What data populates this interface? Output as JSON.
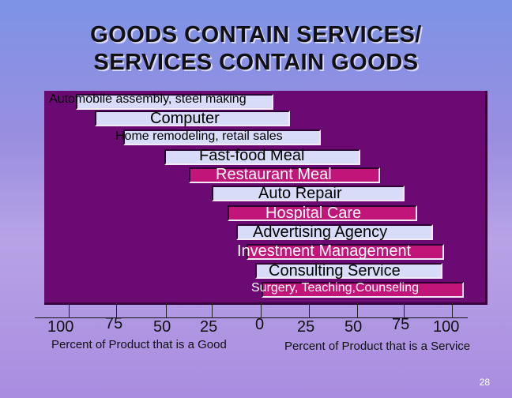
{
  "title": {
    "line1": "GOODS CONTAIN SERVICES/",
    "line2": "SERVICES CONTAIN GOODS"
  },
  "products": [
    {
      "label": "Automobile assembly, steel making",
      "style": "light"
    },
    {
      "label": "Computer",
      "style": "light"
    },
    {
      "label": "Home remodeling, retail sales",
      "style": "light"
    },
    {
      "label": "Fast-food Meal",
      "style": "light"
    },
    {
      "label": "Restaurant Meal",
      "style": "pink"
    },
    {
      "label": "Auto Repair",
      "style": "light"
    },
    {
      "label": "Hospital Care",
      "style": "pink"
    },
    {
      "label": "Advertising Agency",
      "style": "light"
    },
    {
      "label": "Investment Management",
      "style": "pink"
    },
    {
      "label": "Consulting Service",
      "style": "light"
    },
    {
      "label": "Surgery, Teaching,Counseling",
      "style": "pink"
    }
  ],
  "axis": {
    "left_ticks": [
      "100",
      "75",
      "50",
      "25",
      "0"
    ],
    "right_ticks": [
      "25",
      "50",
      "75",
      "100"
    ],
    "left_label": "Percent of Product that is a Good",
    "right_label": "Percent of Product that is a Service"
  },
  "page_number": "28",
  "colors": {
    "panel": "#6b0a73",
    "light_bar": "#d9dcf8",
    "pink_bar": "#c2157a"
  }
}
